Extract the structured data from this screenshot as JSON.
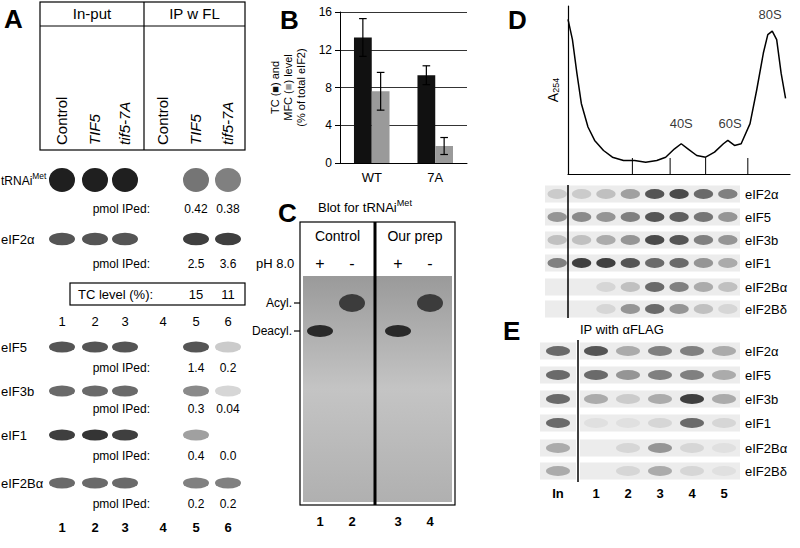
{
  "chart_data": [
    {
      "type": "bar",
      "title": "B",
      "categories": [
        "WT",
        "7A"
      ],
      "series": [
        {
          "name": "TC",
          "color": "#111111",
          "values": [
            13.3,
            9.3
          ],
          "errors": [
            2.0,
            1.0
          ]
        },
        {
          "name": "MFC",
          "color": "#9a9a9a",
          "values": [
            7.6,
            1.8
          ],
          "errors": [
            2.0,
            0.9
          ]
        }
      ],
      "ylabel": "TC (■) and\nMFC (■) level\n(% of total eIF2)",
      "ylim": [
        0,
        16
      ],
      "yticks": [
        0,
        4,
        8,
        12,
        16
      ],
      "grid": true
    },
    {
      "type": "line",
      "title": "D",
      "x": [
        0,
        2,
        4,
        6,
        9,
        12,
        16,
        20,
        25,
        30,
        35,
        40,
        44,
        48,
        51,
        54,
        58,
        62,
        66,
        70,
        72,
        75,
        78,
        82,
        85,
        88,
        90,
        92,
        94,
        96,
        98
      ],
      "values": [
        92,
        80,
        60,
        42,
        28,
        20,
        14,
        10,
        8,
        8,
        7,
        8,
        10,
        15,
        18,
        15,
        11,
        10,
        13,
        18,
        20,
        17,
        18,
        30,
        50,
        72,
        83,
        85,
        80,
        60,
        45
      ],
      "color": "#000000",
      "ylabel": {
        "text": "A",
        "sub": "254"
      },
      "xlim": [
        0,
        100
      ],
      "ylim": [
        0,
        100
      ],
      "tick_labels": false,
      "annotations": [
        {
          "text": "40S",
          "x": 51,
          "y": 30
        },
        {
          "text": "60S",
          "x": 73,
          "y": 30
        },
        {
          "text": "80S",
          "x": 91,
          "y": 95
        }
      ],
      "fraction_bounds": [
        29,
        46,
        62,
        81
      ]
    }
  ],
  "panels": {
    "A": {
      "label": "A",
      "header": {
        "groups": [
          {
            "text": "In-put",
            "lanes": 3
          },
          {
            "text": "IP w FL",
            "lanes": 3
          }
        ],
        "lanes": [
          {
            "text": "Control",
            "italic": false
          },
          {
            "text": "TIF5",
            "italic": true
          },
          {
            "text": "tif5-7A",
            "italic": true
          },
          {
            "text": "Control",
            "italic": false
          },
          {
            "text": "TIF5",
            "italic": true
          },
          {
            "text": "tif5-7A",
            "italic": true
          }
        ]
      },
      "rows": [
        {
          "label": {
            "text": "tRNAi",
            "sup": "Met"
          },
          "bands": [
            0.95,
            0.95,
            0.95,
            0,
            0.55,
            0.5
          ],
          "pmol": {
            "label": "pmol IPed:",
            "lanes": [
              5,
              6
            ],
            "values": [
              "0.42",
              "0.38"
            ]
          }
        },
        {
          "label": {
            "text": "eIF2α"
          },
          "bands": [
            0.7,
            0.7,
            0.7,
            0,
            0.8,
            0.8
          ],
          "pmol": {
            "label": "pmol IPed:",
            "lanes": [
              5,
              6
            ],
            "values": [
              "2.5",
              "3.6"
            ]
          }
        },
        {
          "label": {
            "text": "eIF5"
          },
          "bands": [
            0.7,
            0.7,
            0.7,
            0,
            0.7,
            0.15
          ],
          "pmol": {
            "label": "pmol IPed:",
            "lanes": [
              5,
              6
            ],
            "values": [
              "1.4",
              "0.2"
            ]
          }
        },
        {
          "label": {
            "text": "eIF3b"
          },
          "bands": [
            0.6,
            0.6,
            0.6,
            0,
            0.45,
            0.1
          ],
          "pmol": {
            "label": "pmol IPed:",
            "lanes": [
              5,
              6
            ],
            "values": [
              "0.3",
              "0.04"
            ]
          }
        },
        {
          "label": {
            "text": "eIF1"
          },
          "bands": [
            0.8,
            0.85,
            0.8,
            0,
            0.35,
            0
          ],
          "pmol": {
            "label": "pmol IPed:",
            "lanes": [
              5,
              6
            ],
            "values": [
              "0.4",
              "0.0"
            ]
          }
        },
        {
          "label": {
            "text": "eIF2Bα"
          },
          "bands": [
            0.6,
            0.6,
            0.6,
            0,
            0.5,
            0.5
          ],
          "pmol": {
            "label": "pmol IPed:",
            "lanes": [
              5,
              6
            ],
            "values": [
              "0.2",
              "0.2"
            ]
          }
        }
      ],
      "tc_box": {
        "label": "TC level (%):",
        "lanes": [
          5,
          6
        ],
        "values": [
          "15",
          "11"
        ]
      },
      "lane_numbers": [
        "1",
        "2",
        "3",
        "4",
        "5",
        "6"
      ],
      "lane_numbers_bottom": [
        "1",
        "2",
        "3",
        "4",
        "5",
        "6"
      ]
    },
    "C": {
      "label": "C",
      "title": {
        "text": "Blot for tRNAi",
        "sup": "Met"
      },
      "groups": [
        {
          "text": "Control",
          "lanes": 2
        },
        {
          "text": "Our prep",
          "lanes": 2
        }
      ],
      "condition": "pH 8.0",
      "forms": [
        "Acyl.",
        "Deacyl."
      ],
      "lanes": [
        {
          "sign": "+",
          "form": "Deacyl."
        },
        {
          "sign": "-",
          "form": "Acyl."
        },
        {
          "sign": "+",
          "form": "Deacyl."
        },
        {
          "sign": "-",
          "form": "Acyl."
        }
      ],
      "lane_numbers": [
        "1",
        "2",
        "3",
        "4"
      ]
    },
    "D": {
      "rows": [
        {
          "label": "eIF2α",
          "bands": [
            0.15,
            0.15,
            0.2,
            0.35,
            0.7,
            0.75,
            0.6,
            0.5
          ]
        },
        {
          "label": "eIF5",
          "bands": [
            0.4,
            0.45,
            0.4,
            0.5,
            0.7,
            0.65,
            0.55,
            0.4
          ]
        },
        {
          "label": "eIF3b",
          "bands": [
            0.2,
            0.2,
            0.3,
            0.4,
            0.75,
            0.7,
            0.5,
            0.4
          ]
        },
        {
          "label": "eIF1",
          "bands": [
            0.5,
            0.8,
            0.8,
            0.7,
            0.6,
            0.6,
            0.4,
            0.3
          ]
        },
        {
          "label": "eIF2Bα",
          "bands": [
            0,
            0,
            0.1,
            0.2,
            0.6,
            0.5,
            0.3,
            0.2
          ]
        },
        {
          "label": "eIF2Bδ",
          "bands": [
            0,
            0,
            0.1,
            0.4,
            0.6,
            0.4,
            0.2,
            0.1
          ]
        }
      ]
    },
    "E": {
      "label": "E",
      "title": "IP with αFLAG",
      "lanes": [
        "In",
        "1",
        "2",
        "3",
        "4",
        "5"
      ],
      "rows": [
        {
          "label": "eIF2α",
          "bands": [
            0.6,
            0.7,
            0.3,
            0.5,
            0.5,
            0.3
          ]
        },
        {
          "label": "eIF5",
          "bands": [
            0.6,
            0.6,
            0.4,
            0.5,
            0.5,
            0.3
          ]
        },
        {
          "label": "eIF3b",
          "bands": [
            0.6,
            0.3,
            0.15,
            0.3,
            0.8,
            0.3
          ]
        },
        {
          "label": "eIF1",
          "bands": [
            0.6,
            0.05,
            0.05,
            0.1,
            0.6,
            0.1
          ]
        },
        {
          "label": "eIF2Bα",
          "bands": [
            0.3,
            0,
            0.1,
            0.4,
            0.1,
            0.05
          ]
        },
        {
          "label": "eIF2Bδ",
          "bands": [
            0.3,
            0,
            0.1,
            0.3,
            0.1,
            0.05
          ]
        }
      ]
    }
  }
}
